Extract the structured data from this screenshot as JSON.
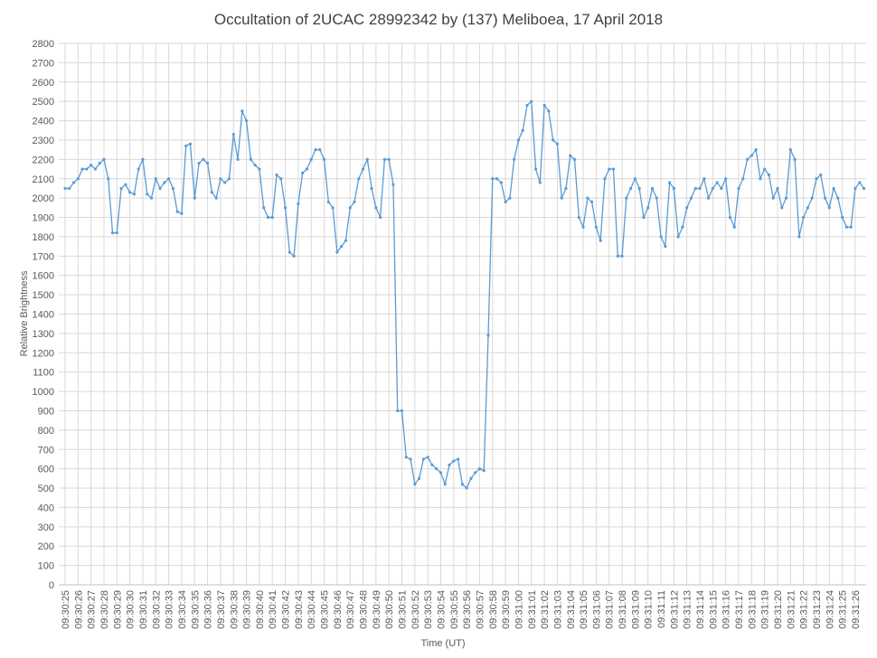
{
  "chart_data": {
    "type": "line",
    "title": "Occultation of 2UCAC 28992342 by (137) Meliboea, 17 April 2018",
    "x_label": "Time (UT)",
    "y_label": "Relative Brightness",
    "grid": true,
    "markers": true,
    "ylim": [
      0,
      2800
    ],
    "yticks": [
      0,
      100,
      200,
      300,
      400,
      500,
      600,
      700,
      800,
      900,
      1000,
      1100,
      1200,
      1300,
      1400,
      1500,
      1600,
      1700,
      1800,
      1900,
      2000,
      2100,
      2200,
      2300,
      2400,
      2500,
      2600,
      2700,
      2800
    ],
    "categories": [
      "09:30:25",
      null,
      null,
      "09:30:26",
      null,
      null,
      "09:30:27",
      null,
      null,
      "09:30:28",
      null,
      null,
      "09:30:29",
      null,
      null,
      "09:30:30",
      null,
      null,
      "09:30:31",
      null,
      null,
      "09:30:32",
      null,
      null,
      "09:30:33",
      null,
      null,
      "09:30:34",
      null,
      null,
      "09:30:35",
      null,
      null,
      "09:30:36",
      null,
      null,
      "09:30:37",
      null,
      null,
      "09:30:38",
      null,
      null,
      "09:30:39",
      null,
      null,
      "09:30:40",
      null,
      null,
      "09:30:41",
      null,
      null,
      "09:30:42",
      null,
      null,
      "09:30:43",
      null,
      null,
      "09:30:44",
      null,
      null,
      "09:30:45",
      null,
      null,
      "09:30:46",
      null,
      null,
      "09:30:47",
      null,
      null,
      "09:30:48",
      null,
      null,
      "09:30:49",
      null,
      null,
      "09:30:50",
      null,
      null,
      "09:30:51",
      null,
      null,
      "09:30:52",
      null,
      null,
      "09:30:53",
      null,
      null,
      "09:30:54",
      null,
      null,
      "09:30:55",
      null,
      null,
      "09:30:56",
      null,
      null,
      "09:30:57",
      null,
      null,
      "09:30:58",
      null,
      null,
      "09:30:59",
      null,
      null,
      "09:31:00",
      null,
      null,
      "09:31:01",
      null,
      null,
      "09:31:02",
      null,
      null,
      "09:31:03",
      null,
      null,
      "09:31:04",
      null,
      null,
      "09:31:05",
      null,
      null,
      "09:31:06",
      null,
      null,
      "09:31:07",
      null,
      null,
      "09:31:08",
      null,
      null,
      "09:31:09",
      null,
      null,
      "09:31:10",
      null,
      null,
      "09:31:11",
      null,
      null,
      "09:31:12",
      null,
      null,
      "09:31:13",
      null,
      null,
      "09:31:14",
      null,
      null,
      "09:31:15",
      null,
      null,
      "09:31:16",
      null,
      null,
      "09:31:17",
      null,
      null,
      "09:31:18",
      null,
      null,
      "09:31:19",
      null,
      null,
      "09:31:20",
      null,
      null,
      "09:31:21",
      null,
      null,
      "09:31:22",
      null,
      null,
      "09:31:23",
      null,
      null,
      "09:31:24",
      null,
      null,
      "09:31:25",
      null,
      null,
      "09:31:26",
      null,
      null
    ],
    "series": [
      {
        "color": "#5b9bd5",
        "values": [
          2050,
          2050,
          2080,
          2100,
          2150,
          2150,
          2170,
          2150,
          2180,
          2200,
          2100,
          1820,
          1820,
          2050,
          2070,
          2030,
          2020,
          2150,
          2200,
          2020,
          2000,
          2100,
          2050,
          2080,
          2100,
          2050,
          1930,
          1920,
          2270,
          2280,
          2000,
          2180,
          2200,
          2180,
          2030,
          2000,
          2100,
          2080,
          2100,
          2330,
          2200,
          2450,
          2400,
          2200,
          2170,
          2150,
          1950,
          1900,
          1900,
          2120,
          2100,
          1950,
          1720,
          1700,
          1970,
          2130,
          2150,
          2200,
          2250,
          2250,
          2200,
          1980,
          1950,
          1720,
          1750,
          1780,
          1950,
          1980,
          2100,
          2150,
          2200,
          2050,
          1950,
          1900,
          2200,
          2200,
          2070,
          900,
          900,
          660,
          650,
          520,
          550,
          650,
          660,
          620,
          600,
          580,
          520,
          620,
          640,
          650,
          520,
          500,
          550,
          580,
          600,
          590,
          1290,
          2100,
          2100,
          2080,
          1980,
          2000,
          2200,
          2300,
          2350,
          2480,
          2500,
          2150,
          2080,
          2480,
          2450,
          2300,
          2280,
          2000,
          2050,
          2220,
          2200,
          1900,
          1850,
          2000,
          1980,
          1850,
          1780,
          2100,
          2150,
          2150,
          1700,
          1700,
          2000,
          2050,
          2100,
          2050,
          1900,
          1950,
          2050,
          2000,
          1800,
          1750,
          2080,
          2050,
          1800,
          1850,
          1950,
          2000,
          2050,
          2050,
          2100,
          2000,
          2050,
          2080,
          2050,
          2100,
          1900,
          1850,
          2050,
          2100,
          2200,
          2220,
          2250,
          2100,
          2150,
          2120,
          2000,
          2050,
          1950,
          2000,
          2250,
          2200,
          1800,
          1900,
          1950,
          2000,
          2100,
          2120,
          2000,
          1950,
          2050,
          2000,
          1900,
          1850,
          1850,
          2050,
          2080,
          2050
        ]
      }
    ]
  }
}
